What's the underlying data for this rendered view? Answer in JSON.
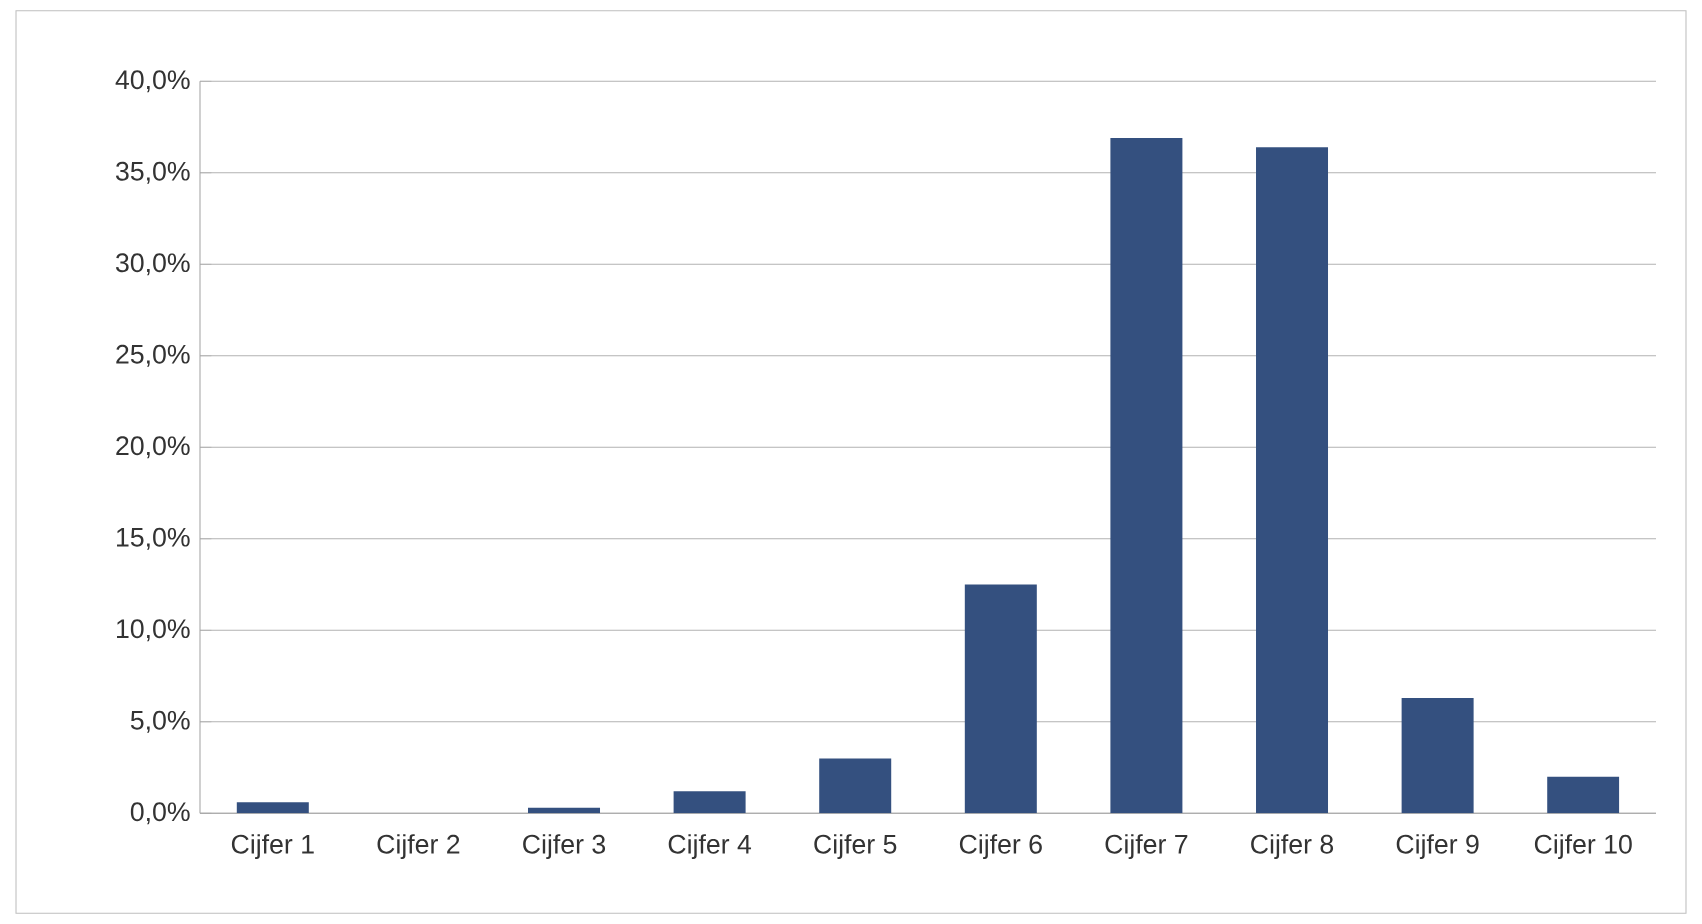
{
  "chart_data": {
    "type": "bar",
    "categories": [
      "Cijfer 1",
      "Cijfer 2",
      "Cijfer 3",
      "Cijfer 4",
      "Cijfer 5",
      "Cijfer 6",
      "Cijfer 7",
      "Cijfer 8",
      "Cijfer 9",
      "Cijfer 10"
    ],
    "values": [
      0.6,
      0,
      0.3,
      1.2,
      3.0,
      12.5,
      36.9,
      36.4,
      6.3,
      2.0
    ],
    "color": "#34507f",
    "ylim": [
      0,
      40
    ],
    "yticks": [
      {
        "value": 0,
        "label": "0,0%"
      },
      {
        "value": 5,
        "label": "5,0%"
      },
      {
        "value": 10,
        "label": "10,0%"
      },
      {
        "value": 15,
        "label": "15,0%"
      },
      {
        "value": 20,
        "label": "20,0%"
      },
      {
        "value": 25,
        "label": "25,0%"
      },
      {
        "value": 30,
        "label": "30,0%"
      },
      {
        "value": 35,
        "label": "35,0%"
      },
      {
        "value": 40,
        "label": "40,0%"
      }
    ],
    "grid": "y"
  }
}
